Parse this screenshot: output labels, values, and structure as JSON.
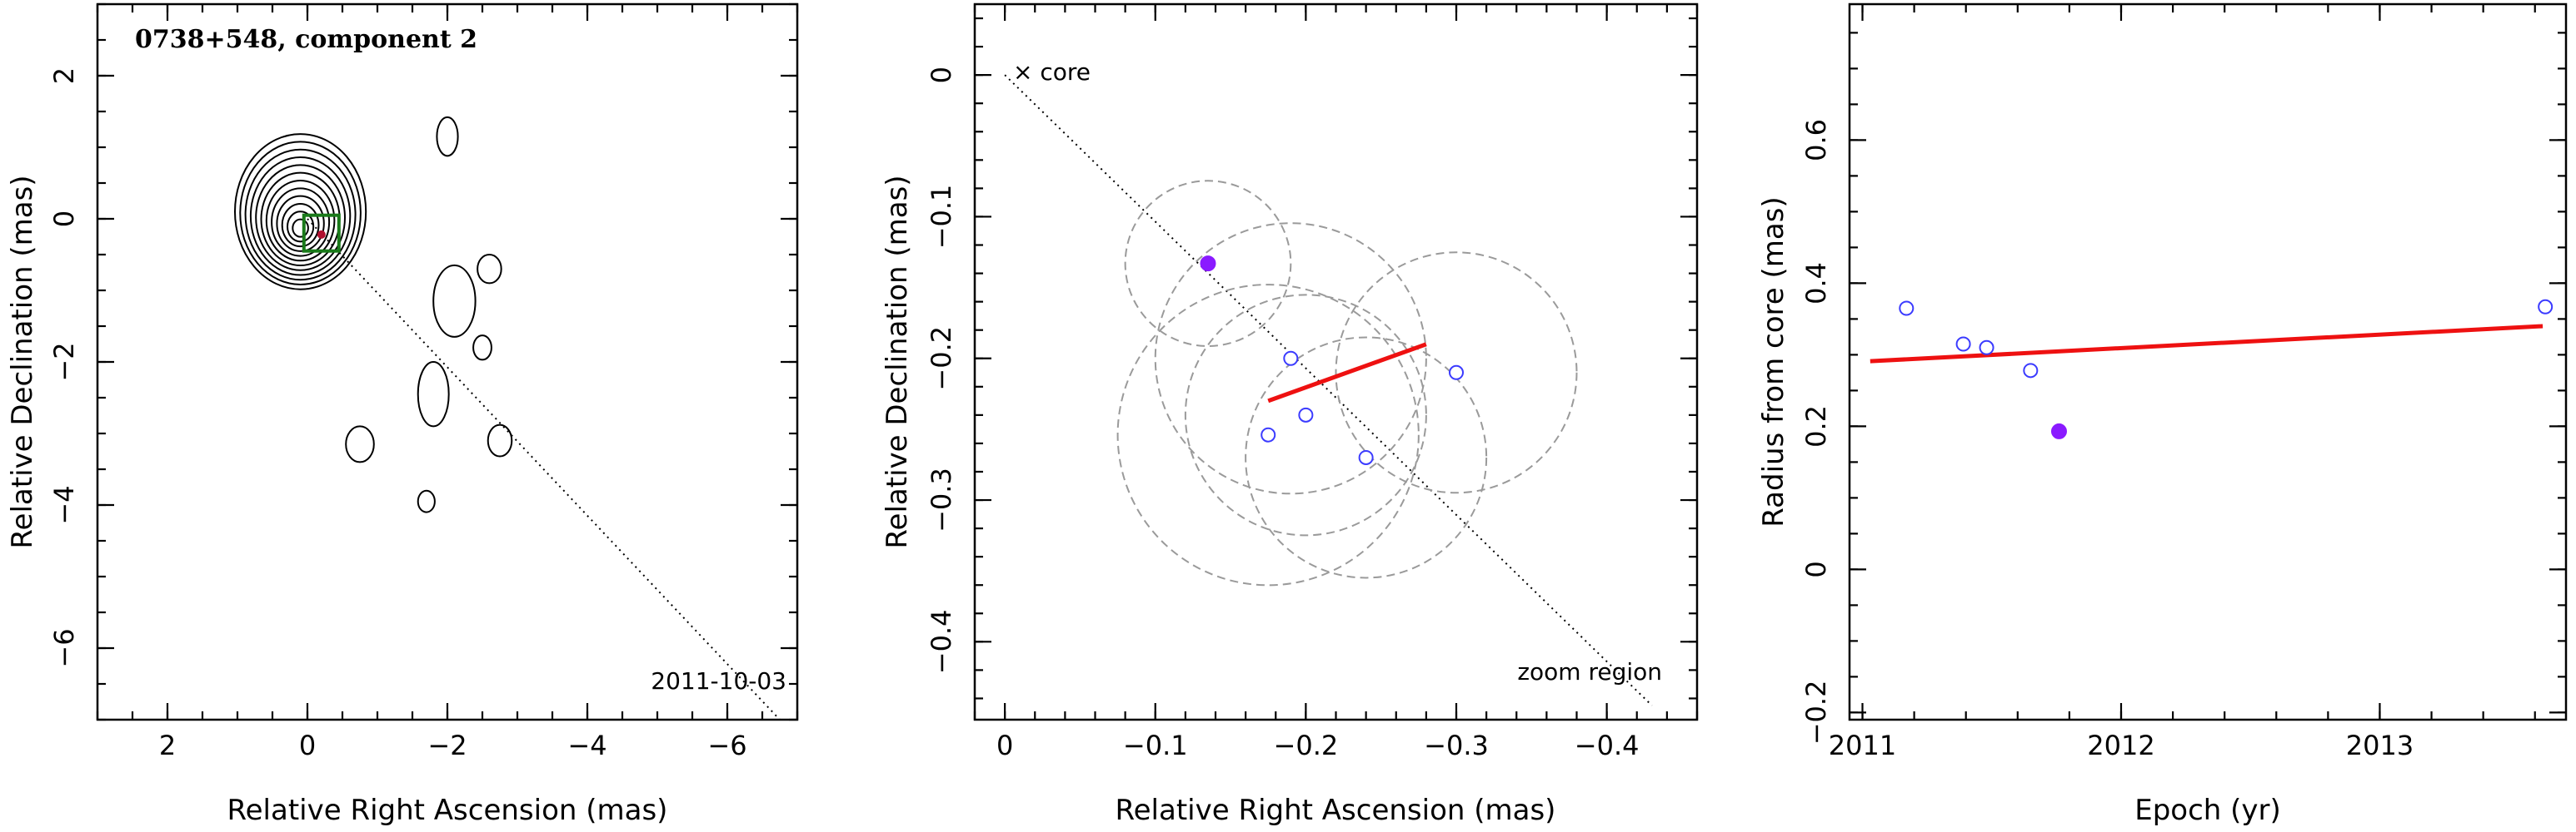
{
  "chart_data": [
    {
      "type": "scatter",
      "subtype": "contour-map",
      "title": "0738+548, component 2",
      "xlabel": "Relative Right Ascension (mas)",
      "ylabel": "Relative Declination (mas)",
      "xlim": [
        3,
        -7
      ],
      "ylim": [
        -7,
        3
      ],
      "xticks": [
        2,
        0,
        -2,
        -4,
        -6
      ],
      "yticks": [
        2,
        0,
        -2,
        -4,
        -6
      ],
      "tick_labels_x": [
        "2",
        "0",
        "−2",
        "−4",
        "−6"
      ],
      "tick_labels_y": [
        "2",
        "0",
        "−2",
        "−4",
        "−6"
      ],
      "date_label": "2011-10-03",
      "core_contours": {
        "center": [
          0.1,
          0.1
        ],
        "levels": 12
      },
      "islands": [
        {
          "x": -2.0,
          "y": 1.15,
          "rx": 0.15,
          "ry": 0.27
        },
        {
          "x": -2.1,
          "y": -1.15,
          "rx": 0.3,
          "ry": 0.5
        },
        {
          "x": -2.6,
          "y": -0.7,
          "rx": 0.17,
          "ry": 0.2
        },
        {
          "x": -2.5,
          "y": -1.8,
          "rx": 0.13,
          "ry": 0.17
        },
        {
          "x": -1.8,
          "y": -2.45,
          "rx": 0.22,
          "ry": 0.45
        },
        {
          "x": -0.75,
          "y": -3.15,
          "rx": 0.2,
          "ry": 0.25
        },
        {
          "x": -2.75,
          "y": -3.1,
          "rx": 0.17,
          "ry": 0.22
        },
        {
          "x": -1.7,
          "y": -3.95,
          "rx": 0.12,
          "ry": 0.15
        }
      ],
      "zoom_box": {
        "x": [
          0.05,
          -0.45
        ],
        "y": [
          0.05,
          -0.45
        ]
      },
      "trajectory": {
        "from": [
          0,
          0
        ],
        "to": [
          -6.75,
          -7.0
        ]
      },
      "colors": {
        "zoom_box": "#1a7a1a",
        "marker": "#b01030",
        "contour": "#000000"
      }
    },
    {
      "type": "scatter",
      "xlabel": "Relative Right Ascension (mas)",
      "ylabel": "Relative Declination (mas)",
      "xlim": [
        0.02,
        -0.46
      ],
      "ylim": [
        -0.455,
        0.05
      ],
      "xticks": [
        0,
        -0.1,
        -0.2,
        -0.3,
        -0.4
      ],
      "yticks": [
        0,
        -0.1,
        -0.2,
        -0.3,
        -0.4
      ],
      "tick_labels_x": [
        "0",
        "−0.1",
        "−0.2",
        "−0.3",
        "−0.4"
      ],
      "tick_labels_y": [
        "0",
        "−0.1",
        "−0.2",
        "−0.3",
        "−0.4"
      ],
      "core_label": "core",
      "core_marker": "×",
      "region_label": "zoom region",
      "trajectory": {
        "from": [
          0,
          0
        ],
        "to": [
          -0.43,
          -0.445
        ]
      },
      "points_open": [
        {
          "x": -0.19,
          "y": -0.2,
          "r": 0.09
        },
        {
          "x": -0.175,
          "y": -0.254,
          "r": 0.1
        },
        {
          "x": -0.2,
          "y": -0.24,
          "r": 0.08
        },
        {
          "x": -0.24,
          "y": -0.27,
          "r": 0.08
        },
        {
          "x": -0.3,
          "y": -0.21,
          "r": 0.08
        }
      ],
      "points_filled": [
        {
          "x": -0.135,
          "y": -0.133,
          "r": 0.055
        }
      ],
      "fit_line": {
        "from": [
          -0.175,
          -0.23
        ],
        "to": [
          -0.28,
          -0.19
        ]
      },
      "colors": {
        "open": "#3b3bff",
        "filled": "#8a1aff",
        "fit": "#ee1111",
        "circle": "#9a9a9a"
      }
    },
    {
      "type": "scatter",
      "xlabel": "Epoch (yr)",
      "ylabel": "Radius from core (mas)",
      "xlim": [
        2010.95,
        2013.72
      ],
      "ylim": [
        -0.21,
        0.79
      ],
      "xticks": [
        2011,
        2012,
        2013
      ],
      "yticks": [
        -0.2,
        0,
        0.2,
        0.4,
        0.6
      ],
      "tick_labels_x": [
        "2011",
        "2012",
        "2013"
      ],
      "tick_labels_y": [
        "−0.2",
        "0",
        "0.2",
        "0.4",
        "0.6"
      ],
      "points_open": [
        {
          "x": 2011.17,
          "y": 0.365
        },
        {
          "x": 2011.39,
          "y": 0.315
        },
        {
          "x": 2011.48,
          "y": 0.31
        },
        {
          "x": 2011.65,
          "y": 0.278
        },
        {
          "x": 2013.64,
          "y": 0.367
        }
      ],
      "points_filled": [
        {
          "x": 2011.76,
          "y": 0.193
        }
      ],
      "fit_line": {
        "from": [
          2011.03,
          0.291
        ],
        "to": [
          2013.63,
          0.34
        ]
      },
      "colors": {
        "open": "#3b3bff",
        "filled": "#8a1aff",
        "fit": "#ee1111"
      }
    }
  ]
}
